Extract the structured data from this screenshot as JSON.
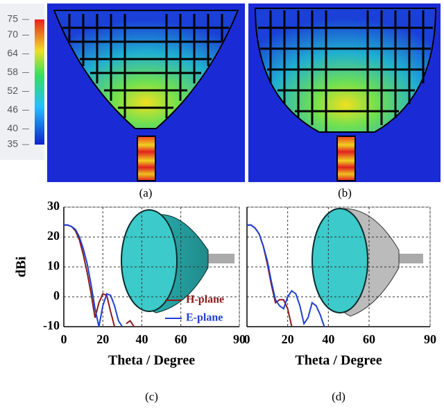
{
  "panels": [
    "(a)",
    "(b)"
  ],
  "colorbar": {
    "ticks": [
      75,
      70,
      64,
      58,
      52,
      46,
      40,
      35
    ],
    "lim": [
      35,
      75
    ]
  },
  "chart_data": [
    {
      "type": "line",
      "label": "(c)",
      "xlabel": "Theta / Degree",
      "ylabel": "dBi",
      "x": [
        0,
        2,
        4,
        6,
        8,
        10,
        12,
        14,
        16,
        18,
        20,
        22,
        24,
        26,
        28,
        30,
        32,
        34,
        36,
        38,
        40,
        42
      ],
      "series": [
        {
          "name": "H-plane",
          "color": "#8b1a1a",
          "values": [
            24,
            24,
            23.5,
            22,
            19,
            14,
            8,
            1,
            -7,
            -2,
            1,
            0.5,
            -5,
            -10,
            null,
            null,
            -9,
            -8,
            -10,
            null,
            null,
            null
          ]
        },
        {
          "name": "E-plane",
          "color": "#1f3fd0",
          "values": [
            24,
            24,
            23.5,
            22.5,
            20,
            16,
            11,
            4,
            -4,
            -10,
            -3,
            1,
            0.5,
            -3,
            -8,
            -10,
            null,
            null,
            null,
            null,
            null,
            null
          ]
        }
      ],
      "xlim": [
        0,
        90
      ],
      "xticks": [
        0,
        20,
        40,
        60,
        90
      ],
      "ylim": [
        -10,
        30
      ],
      "yticks": [
        -10,
        0,
        10,
        20,
        30
      ],
      "grid": true,
      "legend": "lower right"
    },
    {
      "type": "line",
      "label": "(d)",
      "xlabel": "Theta / Degree",
      "x": [
        0,
        2,
        4,
        6,
        8,
        10,
        12,
        14,
        16,
        18,
        20,
        22,
        24,
        26,
        28,
        30,
        32,
        34,
        36,
        38,
        40,
        42
      ],
      "series": [
        {
          "color": "#8b1a1a",
          "values": [
            24,
            24,
            23,
            21,
            17,
            11,
            4,
            -2,
            -1,
            -1,
            -4,
            -10,
            null,
            null,
            null,
            null,
            null,
            null,
            null,
            null,
            null,
            null
          ]
        },
        {
          "color": "#1f3fd0",
          "values": [
            24,
            24,
            23,
            21,
            17,
            12,
            5,
            -1,
            -3,
            -4,
            0,
            2,
            1,
            -3,
            -9,
            -7,
            -2,
            -3,
            -6,
            -10,
            null,
            null
          ]
        }
      ],
      "xlim": [
        0,
        90
      ],
      "xticks": [
        0,
        20,
        40,
        60,
        90
      ],
      "ylim": [
        -10,
        30
      ],
      "yticks": [
        -10,
        0,
        10,
        20,
        30
      ],
      "grid": true
    }
  ]
}
